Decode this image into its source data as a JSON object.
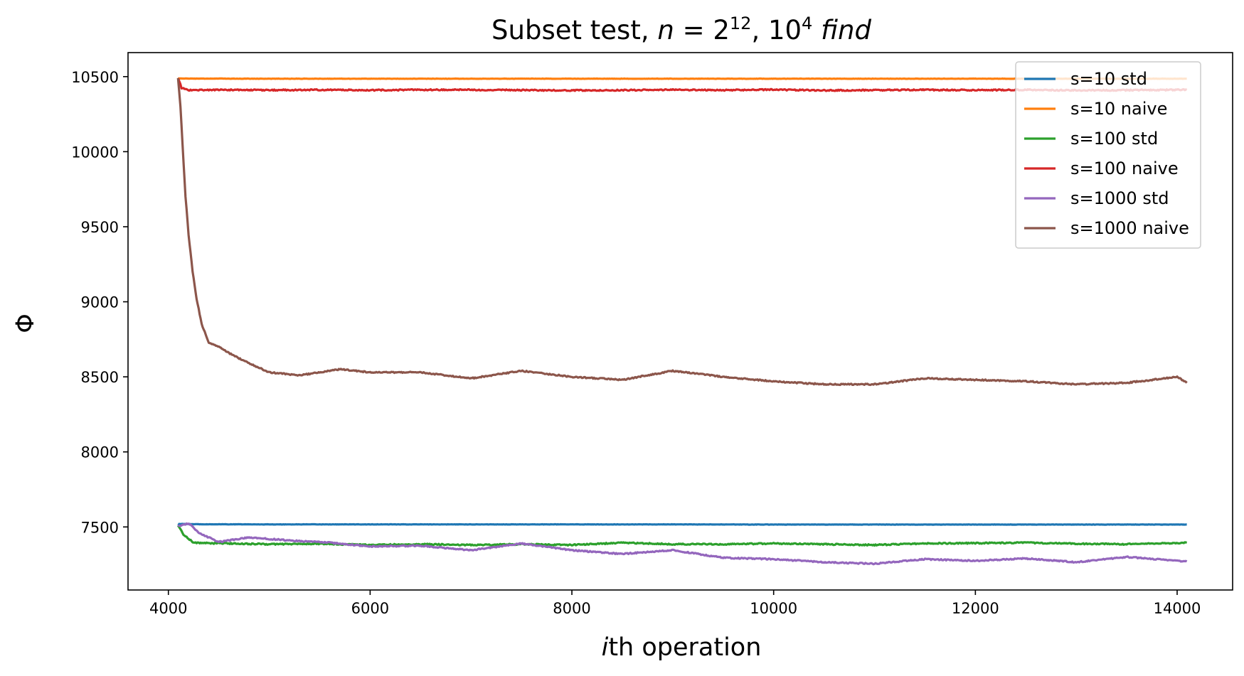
{
  "chart_data": {
    "type": "line",
    "title": {
      "prefix": "Subset test, ",
      "n_var": "n",
      "n_eq": " = 2",
      "n_exp": "12",
      "sep": ", 10",
      "find_exp": "4",
      "find_word": "find"
    },
    "xlabel": {
      "italic": "i",
      "rest": "th operation"
    },
    "ylabel": "Φ",
    "xlim": [
      3600,
      14550
    ],
    "ylim": [
      7080,
      10660
    ],
    "xticks": [
      4000,
      6000,
      8000,
      10000,
      12000,
      14000
    ],
    "yticks": [
      7500,
      8000,
      8500,
      9000,
      9500,
      10000,
      10500
    ],
    "grid": false,
    "legend_position": "top-right",
    "series": [
      {
        "name": "s=10 std",
        "color": "#1f77b4",
        "points": [
          [
            4096,
            7522
          ],
          [
            4100,
            7520
          ],
          [
            4300,
            7518
          ],
          [
            5000,
            7517
          ],
          [
            6000,
            7517
          ],
          [
            7000,
            7517
          ],
          [
            8000,
            7517
          ],
          [
            9000,
            7517
          ],
          [
            10000,
            7516
          ],
          [
            11000,
            7516
          ],
          [
            12000,
            7516
          ],
          [
            13000,
            7516
          ],
          [
            14096,
            7516
          ]
        ]
      },
      {
        "name": "s=10 naive",
        "color": "#ff7f0e",
        "points": [
          [
            4096,
            10488
          ],
          [
            4200,
            10487
          ],
          [
            5000,
            10486
          ],
          [
            6000,
            10486
          ],
          [
            7000,
            10486
          ],
          [
            8000,
            10486
          ],
          [
            9000,
            10486
          ],
          [
            10000,
            10486
          ],
          [
            11000,
            10486
          ],
          [
            12000,
            10486
          ],
          [
            13000,
            10486
          ],
          [
            14096,
            10486
          ]
        ]
      },
      {
        "name": "s=100 std",
        "color": "#2ca02c",
        "points": [
          [
            4096,
            7510
          ],
          [
            4150,
            7450
          ],
          [
            4250,
            7395
          ],
          [
            4400,
            7392
          ],
          [
            5000,
            7385
          ],
          [
            5500,
            7388
          ],
          [
            6000,
            7380
          ],
          [
            6500,
            7385
          ],
          [
            7000,
            7380
          ],
          [
            7500,
            7385
          ],
          [
            8000,
            7380
          ],
          [
            8500,
            7395
          ],
          [
            9000,
            7385
          ],
          [
            9500,
            7385
          ],
          [
            10000,
            7390
          ],
          [
            10500,
            7385
          ],
          [
            11000,
            7380
          ],
          [
            11500,
            7390
          ],
          [
            12000,
            7392
          ],
          [
            12500,
            7395
          ],
          [
            13000,
            7388
          ],
          [
            13500,
            7385
          ],
          [
            14096,
            7395
          ]
        ]
      },
      {
        "name": "s=100 naive",
        "color": "#d62728",
        "points": [
          [
            4096,
            10490
          ],
          [
            4130,
            10425
          ],
          [
            4200,
            10410
          ],
          [
            4500,
            10412
          ],
          [
            5000,
            10410
          ],
          [
            5500,
            10412
          ],
          [
            6000,
            10410
          ],
          [
            6500,
            10412
          ],
          [
            7000,
            10412
          ],
          [
            7500,
            10410
          ],
          [
            8000,
            10408
          ],
          [
            8500,
            10410
          ],
          [
            9000,
            10412
          ],
          [
            9500,
            10410
          ],
          [
            10000,
            10413
          ],
          [
            10500,
            10408
          ],
          [
            11000,
            10410
          ],
          [
            11500,
            10412
          ],
          [
            12000,
            10410
          ],
          [
            12500,
            10412
          ],
          [
            13000,
            10408
          ],
          [
            13500,
            10410
          ],
          [
            14096,
            10412
          ]
        ]
      },
      {
        "name": "s=1000 std",
        "color": "#9467bd",
        "points": [
          [
            4096,
            7505
          ],
          [
            4200,
            7525
          ],
          [
            4300,
            7460
          ],
          [
            4500,
            7400
          ],
          [
            4800,
            7430
          ],
          [
            5200,
            7410
          ],
          [
            5600,
            7395
          ],
          [
            6000,
            7370
          ],
          [
            6500,
            7375
          ],
          [
            7000,
            7345
          ],
          [
            7500,
            7390
          ],
          [
            8000,
            7345
          ],
          [
            8500,
            7320
          ],
          [
            9000,
            7345
          ],
          [
            9500,
            7295
          ],
          [
            10000,
            7285
          ],
          [
            10500,
            7265
          ],
          [
            11000,
            7255
          ],
          [
            11500,
            7285
          ],
          [
            12000,
            7275
          ],
          [
            12500,
            7290
          ],
          [
            13000,
            7265
          ],
          [
            13500,
            7300
          ],
          [
            14096,
            7270
          ]
        ]
      },
      {
        "name": "s=1000 naive",
        "color": "#8c564b",
        "points": [
          [
            4096,
            10490
          ],
          [
            4120,
            10300
          ],
          [
            4140,
            10050
          ],
          [
            4170,
            9700
          ],
          [
            4200,
            9450
          ],
          [
            4240,
            9200
          ],
          [
            4280,
            9020
          ],
          [
            4330,
            8850
          ],
          [
            4400,
            8730
          ],
          [
            4500,
            8700
          ],
          [
            4650,
            8640
          ],
          [
            4800,
            8590
          ],
          [
            5000,
            8530
          ],
          [
            5300,
            8510
          ],
          [
            5700,
            8550
          ],
          [
            6000,
            8530
          ],
          [
            6500,
            8530
          ],
          [
            7000,
            8490
          ],
          [
            7500,
            8540
          ],
          [
            8000,
            8500
          ],
          [
            8500,
            8480
          ],
          [
            9000,
            8540
          ],
          [
            9500,
            8500
          ],
          [
            10000,
            8470
          ],
          [
            10500,
            8450
          ],
          [
            11000,
            8450
          ],
          [
            11500,
            8490
          ],
          [
            12000,
            8480
          ],
          [
            12500,
            8470
          ],
          [
            13000,
            8450
          ],
          [
            13500,
            8460
          ],
          [
            14000,
            8500
          ],
          [
            14096,
            8460
          ]
        ]
      }
    ]
  }
}
